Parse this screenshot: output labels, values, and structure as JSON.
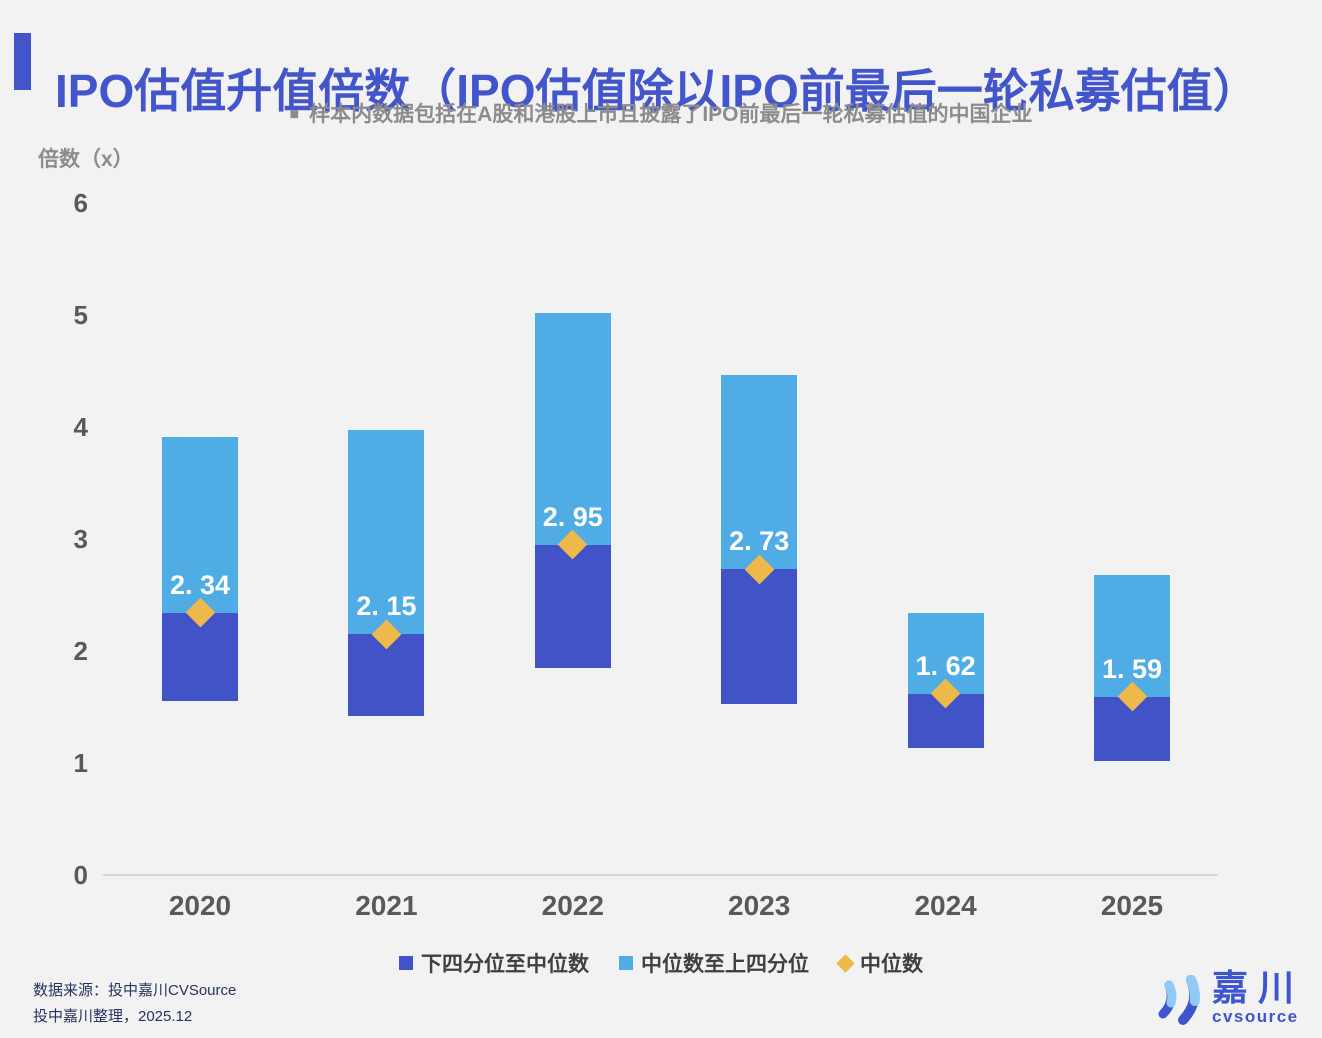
{
  "header": {
    "title": "IPO估值升值倍数（IPO估值除以IPO前最后一轮私募估值）",
    "subtitle_bullet": "■",
    "subtitle": "样本内数据包括在A股和港股上市且披露了IPO前最后一轮私募估值的中国企业"
  },
  "chart_data": {
    "type": "bar",
    "subtype": "floating quartile-range bars with median markers",
    "title": "IPO估值升值倍数（IPO估值除以IPO前最后一轮私募估值）",
    "xlabel": "",
    "ylabel": "倍数（x）",
    "ylim": [
      0,
      6
    ],
    "y_ticks": [
      0,
      1,
      2,
      3,
      4,
      5,
      6
    ],
    "grid": false,
    "legend_position": "bottom",
    "categories": [
      "2020",
      "2021",
      "2022",
      "2023",
      "2024",
      "2025"
    ],
    "lower_quartile": [
      1.55,
      1.42,
      1.85,
      1.53,
      1.13,
      1.02
    ],
    "median": [
      2.34,
      2.15,
      2.95,
      2.73,
      1.62,
      1.59
    ],
    "upper_quartile": [
      3.91,
      3.97,
      5.02,
      4.46,
      2.34,
      2.68
    ],
    "median_labels": [
      "2. 34",
      "2. 15",
      "2. 95",
      "2. 73",
      "1. 62",
      "1. 59"
    ],
    "series": [
      {
        "name": "下四分位至中位数",
        "role": "range lower_quartile→median",
        "color": "#4153C7"
      },
      {
        "name": "中位数至上四分位",
        "role": "range median→upper_quartile",
        "color": "#4FACE4"
      },
      {
        "name": "中位数",
        "role": "marker at median",
        "color": "#EDB94A"
      }
    ]
  },
  "legend": {
    "items": [
      {
        "label": "下四分位至中位数",
        "swatch": "square",
        "color": "#4153C7"
      },
      {
        "label": "中位数至上四分位",
        "swatch": "square",
        "color": "#4FACE4"
      },
      {
        "label": "中位数",
        "swatch": "diamond",
        "color": "#EDB94A"
      }
    ]
  },
  "footer": {
    "source_line1": "数据来源：投中嘉川CVSource",
    "source_line2": "投中嘉川整理，2025.12"
  },
  "logo": {
    "name": "嘉川",
    "sub": "cvsource"
  },
  "colors": {
    "background": "#F2F2F2",
    "title": "#4355CB",
    "accent_bar": "#4355CB",
    "subtitle": "#8C8C8C",
    "axis_text": "#595959",
    "axis_line": "#D6D6D6",
    "bar_lower": "#4153C7",
    "bar_upper": "#4FACE4",
    "median_marker": "#EDB94A",
    "median_label": "#FFFFFF",
    "legend_text": "#404040",
    "footer_text": "#26335B",
    "logo_blue": "#3D56CE",
    "logo_light_blue": "#8FCBF4"
  }
}
